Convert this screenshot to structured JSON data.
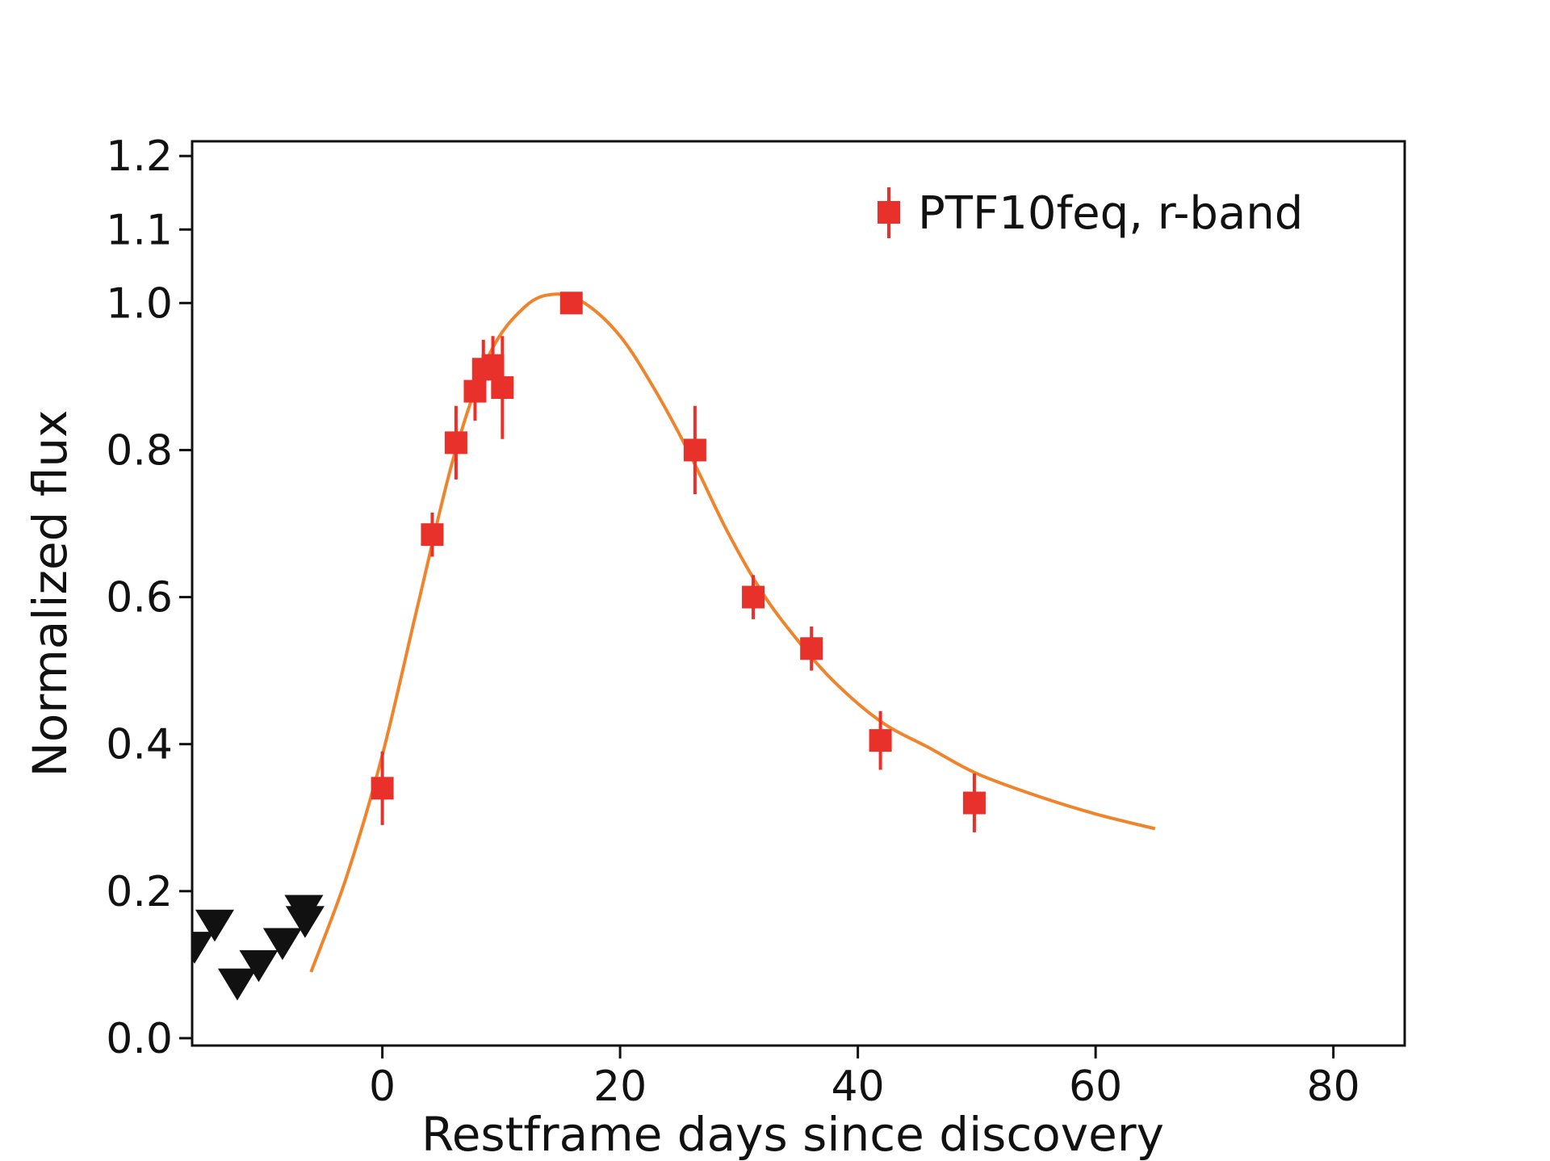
{
  "chart_data": {
    "type": "scatter",
    "title": "",
    "xlabel": "Restframe days since discovery",
    "ylabel": "Normalized flux",
    "xlim": [
      -16,
      86
    ],
    "ylim": [
      -0.01,
      1.22
    ],
    "xticks": [
      0,
      20,
      40,
      60,
      80
    ],
    "xtick_labels": [
      "0",
      "20",
      "40",
      "60",
      "80"
    ],
    "yticks": [
      0.0,
      0.2,
      0.4,
      0.6,
      0.8,
      1.0,
      1.1,
      1.2
    ],
    "ytick_labels": [
      "0.0",
      "0.2",
      "0.4",
      "0.6",
      "0.8",
      "1.0",
      "1.1",
      "1.2"
    ],
    "grid": false,
    "legend": {
      "position": "top-right",
      "entries": [
        "PTF10feq, r-band"
      ]
    },
    "series": [
      {
        "name": "PTF10feq, r-band",
        "kind": "points-with-errorbars",
        "marker": "square",
        "color": "#e8312a",
        "points": [
          {
            "x": 0.0,
            "y": 0.34,
            "err": 0.05
          },
          {
            "x": 4.2,
            "y": 0.685,
            "err": 0.03
          },
          {
            "x": 6.2,
            "y": 0.81,
            "err": 0.05
          },
          {
            "x": 7.8,
            "y": 0.88,
            "err": 0.04
          },
          {
            "x": 8.5,
            "y": 0.91,
            "err": 0.04
          },
          {
            "x": 9.3,
            "y": 0.915,
            "err": 0.04
          },
          {
            "x": 10.1,
            "y": 0.885,
            "err": 0.07
          },
          {
            "x": 15.9,
            "y": 1.0,
            "err": 0.01
          },
          {
            "x": 26.3,
            "y": 0.8,
            "err": 0.06
          },
          {
            "x": 31.2,
            "y": 0.6,
            "err": 0.03
          },
          {
            "x": 36.1,
            "y": 0.53,
            "err": 0.03
          },
          {
            "x": 41.9,
            "y": 0.405,
            "err": 0.04
          },
          {
            "x": 49.8,
            "y": 0.32,
            "err": 0.04
          }
        ]
      },
      {
        "kind": "upper-limits",
        "marker": "triangle-down",
        "color": "#111111",
        "points": [
          {
            "x": -15.8,
            "y": 0.125
          },
          {
            "x": -14.1,
            "y": 0.155
          },
          {
            "x": -12.2,
            "y": 0.075
          },
          {
            "x": -10.4,
            "y": 0.1
          },
          {
            "x": -8.4,
            "y": 0.13
          },
          {
            "x": -6.6,
            "y": 0.175
          },
          {
            "x": -6.5,
            "y": 0.16
          }
        ]
      },
      {
        "kind": "model-curve",
        "color": "#f0842c",
        "points": [
          {
            "x": -6,
            "y": 0.09
          },
          {
            "x": -3,
            "y": 0.22
          },
          {
            "x": 0,
            "y": 0.385
          },
          {
            "x": 3,
            "y": 0.59
          },
          {
            "x": 6,
            "y": 0.79
          },
          {
            "x": 9,
            "y": 0.93
          },
          {
            "x": 12,
            "y": 0.995
          },
          {
            "x": 14.5,
            "y": 1.012
          },
          {
            "x": 17,
            "y": 1.0
          },
          {
            "x": 20,
            "y": 0.955
          },
          {
            "x": 23,
            "y": 0.88
          },
          {
            "x": 26,
            "y": 0.79
          },
          {
            "x": 29,
            "y": 0.69
          },
          {
            "x": 32,
            "y": 0.605
          },
          {
            "x": 35,
            "y": 0.54
          },
          {
            "x": 38,
            "y": 0.485
          },
          {
            "x": 42,
            "y": 0.43
          },
          {
            "x": 46,
            "y": 0.395
          },
          {
            "x": 50,
            "y": 0.36
          },
          {
            "x": 55,
            "y": 0.33
          },
          {
            "x": 60,
            "y": 0.305
          },
          {
            "x": 65,
            "y": 0.285
          }
        ]
      }
    ]
  }
}
